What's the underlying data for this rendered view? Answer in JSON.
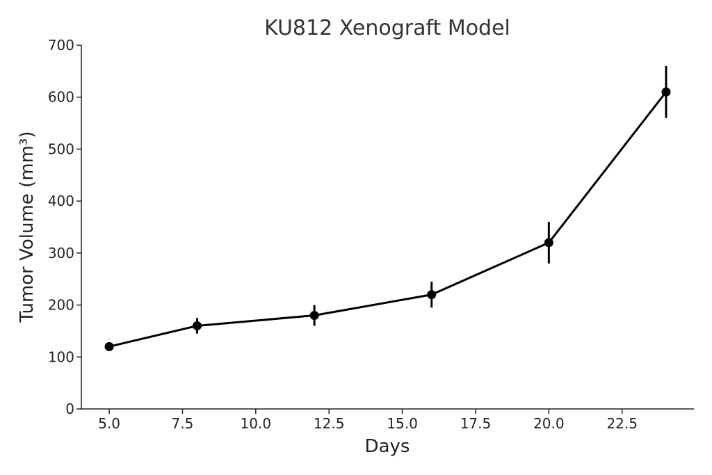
{
  "chart_data": {
    "type": "line",
    "title": "KU812 Xenograft Model",
    "xlabel": "Days",
    "ylabel": "Tumor Volume (mm³)",
    "xlim": [
      4.05,
      24.95
    ],
    "ylim": [
      0,
      700
    ],
    "xticks": [
      5.0,
      7.5,
      10.0,
      12.5,
      15.0,
      17.5,
      20.0,
      22.5
    ],
    "xtick_labels": [
      "5.0",
      "7.5",
      "10.0",
      "12.5",
      "15.0",
      "17.5",
      "20.0",
      "22.5"
    ],
    "yticks": [
      0,
      100,
      200,
      300,
      400,
      500,
      600,
      700
    ],
    "ytick_labels": [
      "0",
      "100",
      "200",
      "300",
      "400",
      "500",
      "600",
      "700"
    ],
    "grid": false,
    "series": [
      {
        "x": [
          5,
          8,
          12,
          16,
          20,
          24
        ],
        "y": [
          120,
          160,
          180,
          220,
          320,
          610
        ],
        "yerr": [
          8,
          15,
          20,
          25,
          40,
          50
        ],
        "color": "#000000"
      }
    ]
  }
}
